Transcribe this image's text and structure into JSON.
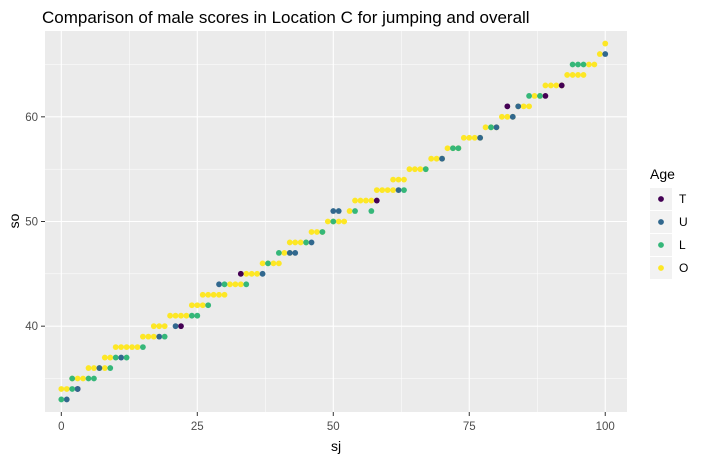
{
  "chart_data": {
    "type": "scatter",
    "title": "Comparison of male scores in Location C for jumping and overall",
    "xlabel": "sj",
    "ylabel": "so",
    "xlim": [
      -3,
      104
    ],
    "ylim": [
      31.8,
      68.2
    ],
    "x_ticks": [
      0,
      25,
      50,
      75,
      100
    ],
    "y_ticks": [
      40,
      50,
      60
    ],
    "grid": true,
    "legend": {
      "title": "Age",
      "position": "right"
    },
    "series": [
      {
        "name": "T",
        "color": "#440154",
        "points": [
          [
            3,
            34
          ],
          [
            22,
            40
          ],
          [
            33,
            45
          ],
          [
            58,
            52
          ],
          [
            82,
            61
          ],
          [
            89,
            62
          ],
          [
            92,
            63
          ]
        ]
      },
      {
        "name": "U",
        "color": "#31688e",
        "points": [
          [
            1,
            33
          ],
          [
            3,
            34
          ],
          [
            7,
            36
          ],
          [
            11,
            37
          ],
          [
            18,
            39
          ],
          [
            21,
            40
          ],
          [
            29,
            44
          ],
          [
            37,
            45
          ],
          [
            42,
            47
          ],
          [
            43,
            47
          ],
          [
            46,
            48
          ],
          [
            50,
            51
          ],
          [
            51,
            51
          ],
          [
            62,
            53
          ],
          [
            70,
            56
          ],
          [
            77,
            58
          ],
          [
            80,
            59
          ],
          [
            83,
            60
          ],
          [
            84,
            61
          ],
          [
            100,
            66
          ]
        ]
      },
      {
        "name": "L",
        "color": "#35b779",
        "points": [
          [
            0,
            33
          ],
          [
            2,
            34
          ],
          [
            2,
            35
          ],
          [
            5,
            35
          ],
          [
            6,
            35
          ],
          [
            9,
            36
          ],
          [
            10,
            37
          ],
          [
            12,
            37
          ],
          [
            15,
            38
          ],
          [
            19,
            39
          ],
          [
            24,
            41
          ],
          [
            25,
            41
          ],
          [
            27,
            42
          ],
          [
            30,
            44
          ],
          [
            34,
            44
          ],
          [
            38,
            46
          ],
          [
            40,
            47
          ],
          [
            45,
            48
          ],
          [
            48,
            49
          ],
          [
            50,
            50
          ],
          [
            54,
            51
          ],
          [
            57,
            51
          ],
          [
            63,
            53
          ],
          [
            67,
            55
          ],
          [
            72,
            57
          ],
          [
            73,
            57
          ],
          [
            79,
            59
          ],
          [
            86,
            62
          ],
          [
            88,
            62
          ],
          [
            94,
            65
          ],
          [
            95,
            65
          ],
          [
            96,
            65
          ]
        ]
      },
      {
        "name": "O",
        "color": "#fde725",
        "points": [
          [
            0,
            34
          ],
          [
            1,
            34
          ],
          [
            2,
            35
          ],
          [
            3,
            35
          ],
          [
            4,
            35
          ],
          [
            5,
            36
          ],
          [
            6,
            36
          ],
          [
            7,
            36
          ],
          [
            8,
            36
          ],
          [
            8,
            37
          ],
          [
            9,
            37
          ],
          [
            10,
            38
          ],
          [
            11,
            38
          ],
          [
            12,
            38
          ],
          [
            13,
            38
          ],
          [
            14,
            38
          ],
          [
            15,
            39
          ],
          [
            16,
            39
          ],
          [
            17,
            39
          ],
          [
            17,
            40
          ],
          [
            18,
            40
          ],
          [
            19,
            40
          ],
          [
            20,
            41
          ],
          [
            21,
            41
          ],
          [
            22,
            41
          ],
          [
            23,
            41
          ],
          [
            24,
            42
          ],
          [
            25,
            42
          ],
          [
            26,
            42
          ],
          [
            26,
            43
          ],
          [
            27,
            43
          ],
          [
            28,
            43
          ],
          [
            29,
            43
          ],
          [
            30,
            43
          ],
          [
            31,
            44
          ],
          [
            32,
            44
          ],
          [
            33,
            44
          ],
          [
            34,
            45
          ],
          [
            35,
            45
          ],
          [
            36,
            45
          ],
          [
            37,
            46
          ],
          [
            38,
            46
          ],
          [
            39,
            46
          ],
          [
            40,
            46
          ],
          [
            41,
            47
          ],
          [
            42,
            47
          ],
          [
            42,
            48
          ],
          [
            43,
            48
          ],
          [
            44,
            48
          ],
          [
            45,
            48
          ],
          [
            46,
            49
          ],
          [
            47,
            49
          ],
          [
            48,
            49
          ],
          [
            49,
            50
          ],
          [
            50,
            50
          ],
          [
            51,
            50
          ],
          [
            52,
            50
          ],
          [
            53,
            51
          ],
          [
            54,
            52
          ],
          [
            55,
            52
          ],
          [
            56,
            52
          ],
          [
            57,
            52
          ],
          [
            58,
            53
          ],
          [
            59,
            53
          ],
          [
            60,
            53
          ],
          [
            61,
            53
          ],
          [
            61,
            54
          ],
          [
            62,
            54
          ],
          [
            63,
            54
          ],
          [
            64,
            55
          ],
          [
            65,
            55
          ],
          [
            66,
            55
          ],
          [
            67,
            55
          ],
          [
            68,
            56
          ],
          [
            69,
            56
          ],
          [
            70,
            56
          ],
          [
            71,
            57
          ],
          [
            72,
            57
          ],
          [
            73,
            57
          ],
          [
            74,
            58
          ],
          [
            75,
            58
          ],
          [
            76,
            58
          ],
          [
            77,
            58
          ],
          [
            78,
            59
          ],
          [
            79,
            59
          ],
          [
            80,
            59
          ],
          [
            81,
            60
          ],
          [
            82,
            60
          ],
          [
            83,
            60
          ],
          [
            84,
            61
          ],
          [
            85,
            61
          ],
          [
            86,
            61
          ],
          [
            87,
            62
          ],
          [
            88,
            62
          ],
          [
            89,
            63
          ],
          [
            90,
            63
          ],
          [
            91,
            63
          ],
          [
            92,
            63
          ],
          [
            93,
            64
          ],
          [
            94,
            64
          ],
          [
            95,
            64
          ],
          [
            96,
            64
          ],
          [
            97,
            65
          ],
          [
            98,
            65
          ],
          [
            99,
            66
          ],
          [
            100,
            67
          ]
        ]
      }
    ]
  }
}
